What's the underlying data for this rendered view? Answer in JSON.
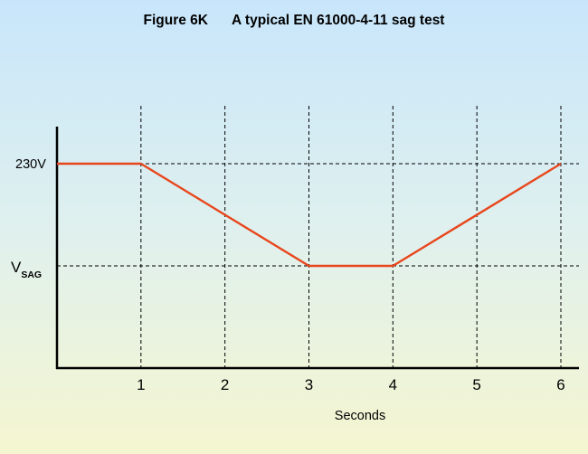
{
  "title": {
    "figure_label": "Figure 6K",
    "caption": "A typical EN 61000-4-11 sag test"
  },
  "colors": {
    "line": "#e8461c",
    "axis": "#000000",
    "grid": "#000000"
  },
  "chart_data": {
    "type": "line",
    "title": "Figure 6K     A typical EN 61000-4-11 sag test",
    "xlabel": "Seconds",
    "ylabel": "",
    "x_ticks": [
      "1",
      "2",
      "3",
      "4",
      "5",
      "6"
    ],
    "xlim": [
      0,
      6
    ],
    "y_levels": [
      {
        "label": "230V",
        "value": 1.0
      },
      {
        "label_main": "V",
        "label_sub": "SAG",
        "value": 0.5
      }
    ],
    "ylim": [
      0,
      1.0
    ],
    "grid": "dashed",
    "series": [
      {
        "x": [
          0,
          1,
          3,
          4,
          6
        ],
        "y": [
          1.0,
          1.0,
          0.5,
          0.5,
          1.0
        ]
      }
    ]
  }
}
